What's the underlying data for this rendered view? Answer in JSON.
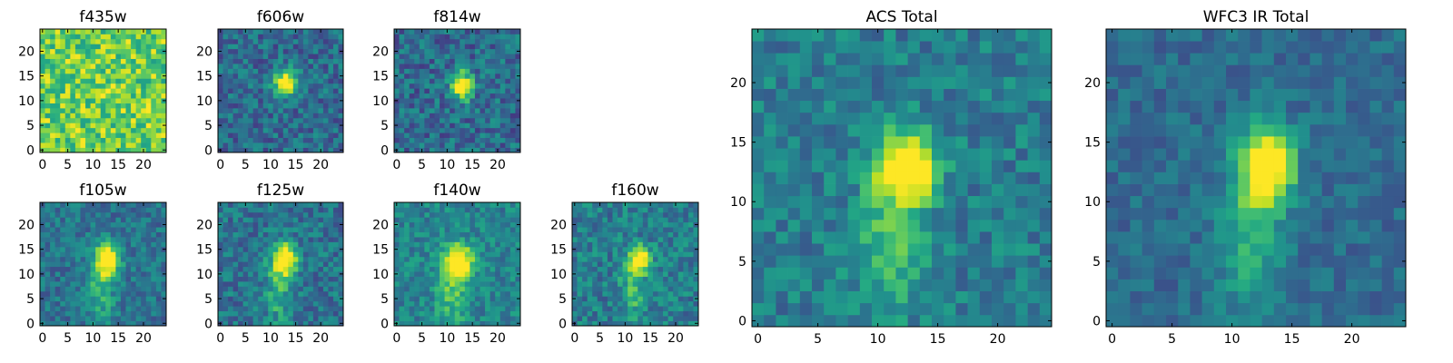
{
  "chart_data": [
    {
      "type": "heatmap",
      "title": "f435w",
      "xticks": [
        0,
        5,
        10,
        15,
        20
      ],
      "yticks": [
        0,
        5,
        10,
        15,
        20
      ],
      "xlim": [
        0,
        25
      ],
      "ylim": [
        0,
        25
      ],
      "grid": false,
      "colormap": "viridis",
      "pattern": "noise",
      "source": {
        "amp": 0.05,
        "cx": 12.5,
        "cy": 12.5,
        "sx": 2,
        "sy": 2
      },
      "background": 0.78,
      "noise": 0.22,
      "seed": 11
    },
    {
      "type": "heatmap",
      "title": "f606w",
      "xticks": [
        0,
        5,
        10,
        15,
        20
      ],
      "yticks": [
        0,
        5,
        10,
        15,
        20
      ],
      "xlim": [
        0,
        25
      ],
      "ylim": [
        0,
        25
      ],
      "grid": false,
      "colormap": "viridis",
      "pattern": "point",
      "source": {
        "amp": 0.85,
        "cx": 13,
        "cy": 13.5,
        "sx": 1.5,
        "sy": 1.8
      },
      "background": 0.35,
      "noise": 0.17,
      "seed": 23
    },
    {
      "type": "heatmap",
      "title": "f814w",
      "xticks": [
        0,
        5,
        10,
        15,
        20
      ],
      "yticks": [
        0,
        5,
        10,
        15,
        20
      ],
      "xlim": [
        0,
        25
      ],
      "ylim": [
        0,
        25
      ],
      "grid": false,
      "colormap": "viridis",
      "pattern": "point",
      "source": {
        "amp": 0.8,
        "cx": 13,
        "cy": 13,
        "sx": 1.4,
        "sy": 2
      },
      "background": 0.35,
      "noise": 0.18,
      "seed": 37
    },
    {
      "type": "heatmap",
      "title": "f105w",
      "xticks": [
        0,
        5,
        10,
        15,
        20
      ],
      "yticks": [
        0,
        5,
        10,
        15,
        20
      ],
      "xlim": [
        0,
        25
      ],
      "ylim": [
        0,
        25
      ],
      "grid": false,
      "colormap": "viridis",
      "pattern": "elongated",
      "source": {
        "amp": 0.8,
        "cx": 13,
        "cy": 13,
        "sx": 1.6,
        "sy": 2.2
      },
      "background": 0.38,
      "noise": 0.14,
      "seed": 41
    },
    {
      "type": "heatmap",
      "title": "f125w",
      "xticks": [
        0,
        5,
        10,
        15,
        20
      ],
      "yticks": [
        0,
        5,
        10,
        15,
        20
      ],
      "xlim": [
        0,
        25
      ],
      "ylim": [
        0,
        25
      ],
      "grid": false,
      "colormap": "viridis",
      "pattern": "elongated",
      "source": {
        "amp": 0.75,
        "cx": 13,
        "cy": 13,
        "sx": 1.6,
        "sy": 2.3
      },
      "background": 0.38,
      "noise": 0.16,
      "seed": 53
    },
    {
      "type": "heatmap",
      "title": "f140w",
      "xticks": [
        0,
        5,
        10,
        15,
        20
      ],
      "yticks": [
        0,
        5,
        10,
        15,
        20
      ],
      "xlim": [
        0,
        25
      ],
      "ylim": [
        0,
        25
      ],
      "grid": false,
      "colormap": "viridis",
      "pattern": "elongated",
      "source": {
        "amp": 0.75,
        "cx": 12.5,
        "cy": 12.5,
        "sx": 1.8,
        "sy": 2.3
      },
      "background": 0.45,
      "noise": 0.14,
      "seed": 67
    },
    {
      "type": "heatmap",
      "title": "f160w",
      "xticks": [
        0,
        5,
        10,
        15,
        20
      ],
      "yticks": [
        0,
        5,
        10,
        15,
        20
      ],
      "xlim": [
        0,
        25
      ],
      "ylim": [
        0,
        25
      ],
      "grid": false,
      "colormap": "viridis",
      "pattern": "elongated",
      "source": {
        "amp": 0.8,
        "cx": 13,
        "cy": 13,
        "sx": 1.4,
        "sy": 1.8
      },
      "background": 0.42,
      "noise": 0.16,
      "seed": 79
    },
    {
      "type": "heatmap",
      "title": "ACS Total",
      "xticks": [
        0,
        5,
        10,
        15,
        20
      ],
      "yticks": [
        0,
        5,
        10,
        15,
        20
      ],
      "xlim": [
        0,
        25
      ],
      "ylim": [
        0,
        25
      ],
      "grid": false,
      "colormap": "viridis",
      "pattern": "elongated",
      "source": {
        "amp": 0.85,
        "cx": 12.5,
        "cy": 13,
        "sx": 1.6,
        "sy": 2
      },
      "background": 0.42,
      "noise": 0.14,
      "seed": 97
    },
    {
      "type": "heatmap",
      "title": "WFC3 IR Total",
      "xticks": [
        0,
        5,
        10,
        15,
        20
      ],
      "yticks": [
        0,
        5,
        10,
        15,
        20
      ],
      "xlim": [
        0,
        25
      ],
      "ylim": [
        0,
        25
      ],
      "grid": false,
      "colormap": "viridis",
      "pattern": "elongated",
      "source": {
        "amp": 0.85,
        "cx": 13,
        "cy": 13,
        "sx": 1.5,
        "sy": 2.2
      },
      "background": 0.35,
      "noise": 0.1,
      "seed": 113
    }
  ]
}
